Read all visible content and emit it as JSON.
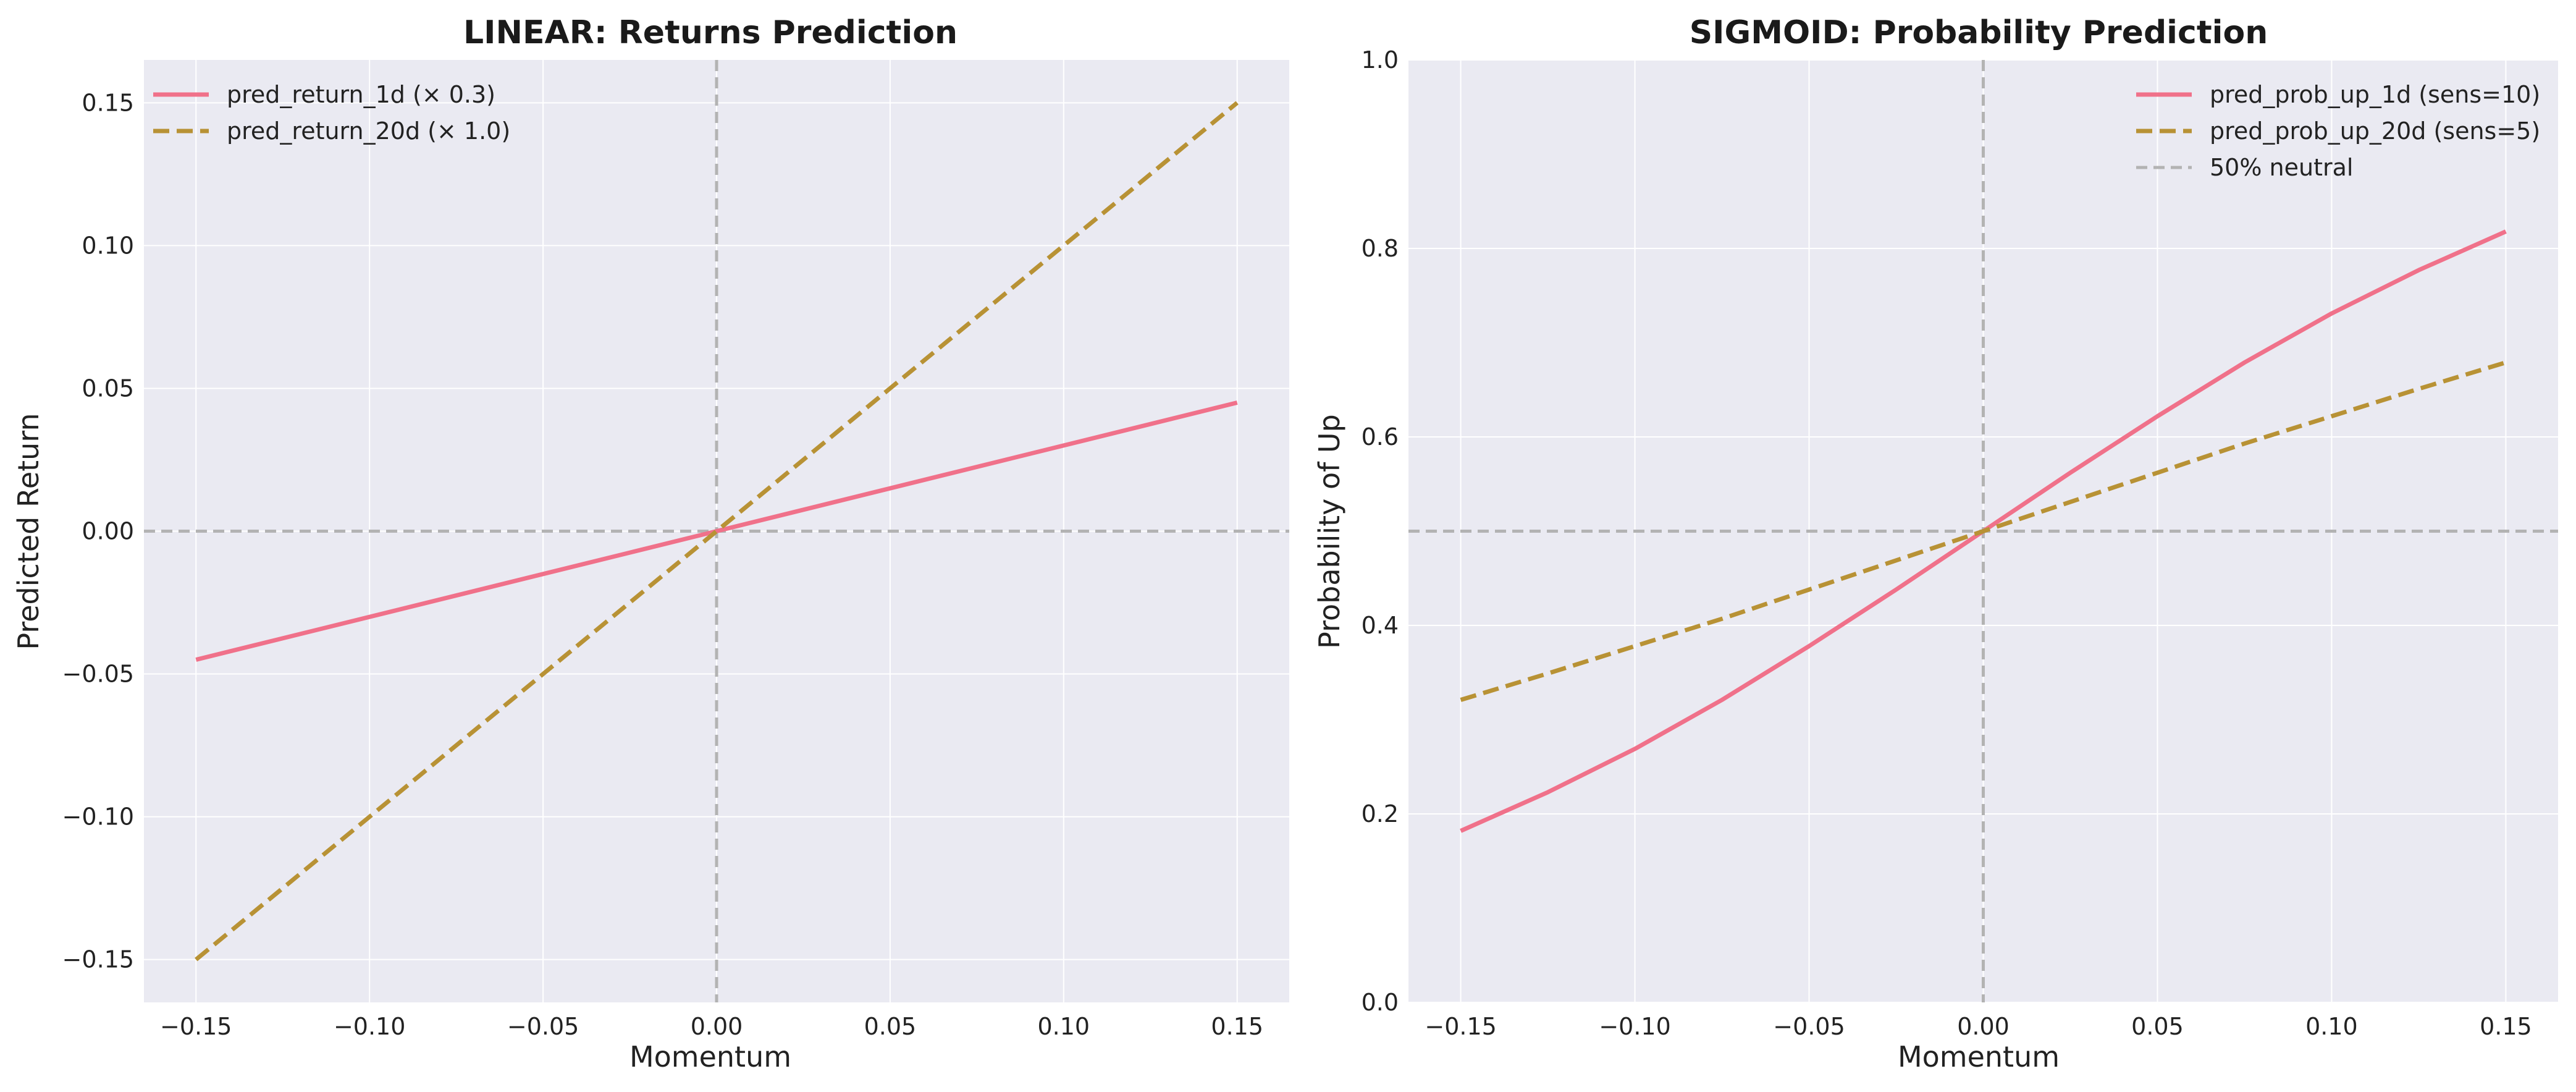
{
  "colors": {
    "plot_bg": "#eaeaf2",
    "grid": "#ffffff",
    "series_1": "#f0718a",
    "series_2": "#b89235",
    "reference": "#b3b3b3"
  },
  "chart_data": [
    {
      "type": "line",
      "title": "LINEAR: Returns Prediction",
      "xlabel": "Momentum",
      "ylabel": "Predicted Return",
      "xlim": [
        -0.165,
        0.165
      ],
      "ylim": [
        -0.165,
        0.165
      ],
      "xticks": [
        -0.15,
        -0.1,
        -0.05,
        0.0,
        0.05,
        0.1,
        0.15
      ],
      "xtick_labels": [
        "−0.15",
        "−0.10",
        "−0.05",
        "0.00",
        "0.05",
        "0.10",
        "0.15"
      ],
      "yticks": [
        -0.15,
        -0.1,
        -0.05,
        0.0,
        0.05,
        0.1,
        0.15
      ],
      "ytick_labels": [
        "−0.15",
        "−0.10",
        "−0.05",
        "0.00",
        "0.05",
        "0.10",
        "0.15"
      ],
      "grid": true,
      "legend_position": "top-left",
      "reference_lines": [
        {
          "axis": "x",
          "value": 0
        },
        {
          "axis": "y",
          "value": 0
        }
      ],
      "series": [
        {
          "name": "pred_return_1d (× 0.3)",
          "style": "solid",
          "x": [
            -0.15,
            0.15
          ],
          "y": [
            -0.045,
            0.045
          ]
        },
        {
          "name": "pred_return_20d (× 1.0)",
          "style": "dashed",
          "x": [
            -0.15,
            0.15
          ],
          "y": [
            -0.15,
            0.15
          ]
        }
      ]
    },
    {
      "type": "line",
      "title": "SIGMOID: Probability Prediction",
      "xlabel": "Momentum",
      "ylabel": "Probability of Up",
      "xlim": [
        -0.165,
        0.165
      ],
      "ylim": [
        0.0,
        1.0
      ],
      "xticks": [
        -0.15,
        -0.1,
        -0.05,
        0.0,
        0.05,
        0.1,
        0.15
      ],
      "xtick_labels": [
        "−0.15",
        "−0.10",
        "−0.05",
        "0.00",
        "0.05",
        "0.10",
        "0.15"
      ],
      "yticks": [
        0.0,
        0.2,
        0.4,
        0.6,
        0.8,
        1.0
      ],
      "ytick_labels": [
        "0.0",
        "0.2",
        "0.4",
        "0.6",
        "0.8",
        "1.0"
      ],
      "grid": true,
      "legend_position": "top-right",
      "reference_lines": [
        {
          "axis": "x",
          "value": 0
        },
        {
          "axis": "y",
          "value": 0.5,
          "legend": "50% neutral"
        }
      ],
      "series": [
        {
          "name": "pred_prob_up_1d (sens=10)",
          "style": "solid",
          "x": [
            -0.15,
            -0.125,
            -0.1,
            -0.075,
            -0.05,
            -0.025,
            0.0,
            0.025,
            0.05,
            0.075,
            0.1,
            0.125,
            0.15
          ],
          "y": [
            0.182,
            0.223,
            0.269,
            0.321,
            0.378,
            0.438,
            0.5,
            0.562,
            0.622,
            0.679,
            0.731,
            0.777,
            0.818
          ]
        },
        {
          "name": "pred_prob_up_20d (sens=5)",
          "style": "dashed",
          "x": [
            -0.15,
            -0.125,
            -0.1,
            -0.075,
            -0.05,
            -0.025,
            0.0,
            0.025,
            0.05,
            0.075,
            0.1,
            0.125,
            0.15
          ],
          "y": [
            0.321,
            0.349,
            0.378,
            0.407,
            0.438,
            0.469,
            0.5,
            0.531,
            0.562,
            0.593,
            0.622,
            0.651,
            0.679
          ]
        }
      ],
      "legend_extra": "50% neutral"
    }
  ]
}
